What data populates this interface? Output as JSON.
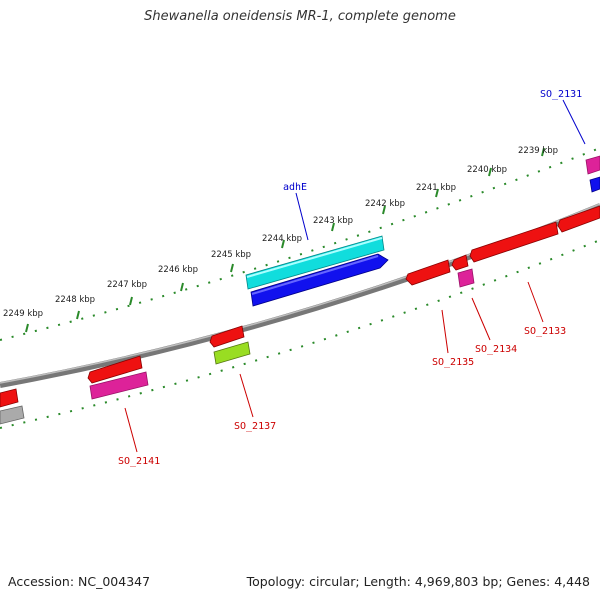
{
  "title": "Shewanella oneidensis MR-1, complete genome",
  "footer": {
    "accession": "Accession: NC_004347",
    "summary": "Topology: circular; Length: 4,969,803 bp; Genes: 4,448"
  },
  "ruler": [
    {
      "label": "2239 kbp"
    },
    {
      "label": "2240 kbp"
    },
    {
      "label": "2241 kbp"
    },
    {
      "label": "2242 kbp"
    },
    {
      "label": "2243 kbp"
    },
    {
      "label": "2244 kbp"
    },
    {
      "label": "2245 kbp"
    },
    {
      "label": "2246 kbp"
    },
    {
      "label": "2247 kbp"
    },
    {
      "label": "2248 kbp"
    },
    {
      "label": "2249 kbp"
    }
  ],
  "gene_labels": [
    {
      "name": "SO_2131",
      "color": "#0000cc"
    },
    {
      "name": "adhE",
      "color": "#0000cc"
    },
    {
      "name": "SO_2133",
      "color": "#cc0000"
    },
    {
      "name": "SO_2134",
      "color": "#cc0000"
    },
    {
      "name": "SO_2135",
      "color": "#cc0000"
    },
    {
      "name": "SO_2137",
      "color": "#cc0000"
    },
    {
      "name": "SO_2141",
      "color": "#cc0000"
    }
  ],
  "colors": {
    "backbone": "#808080",
    "tick": "#2a8a2a",
    "cds_red": "#ee1111",
    "cds_cyan": "#11dddd",
    "cds_blue": "#1111ee",
    "cds_magenta": "#dd2299",
    "cds_lime": "#99dd22",
    "cds_gray": "#aaaaaa"
  }
}
